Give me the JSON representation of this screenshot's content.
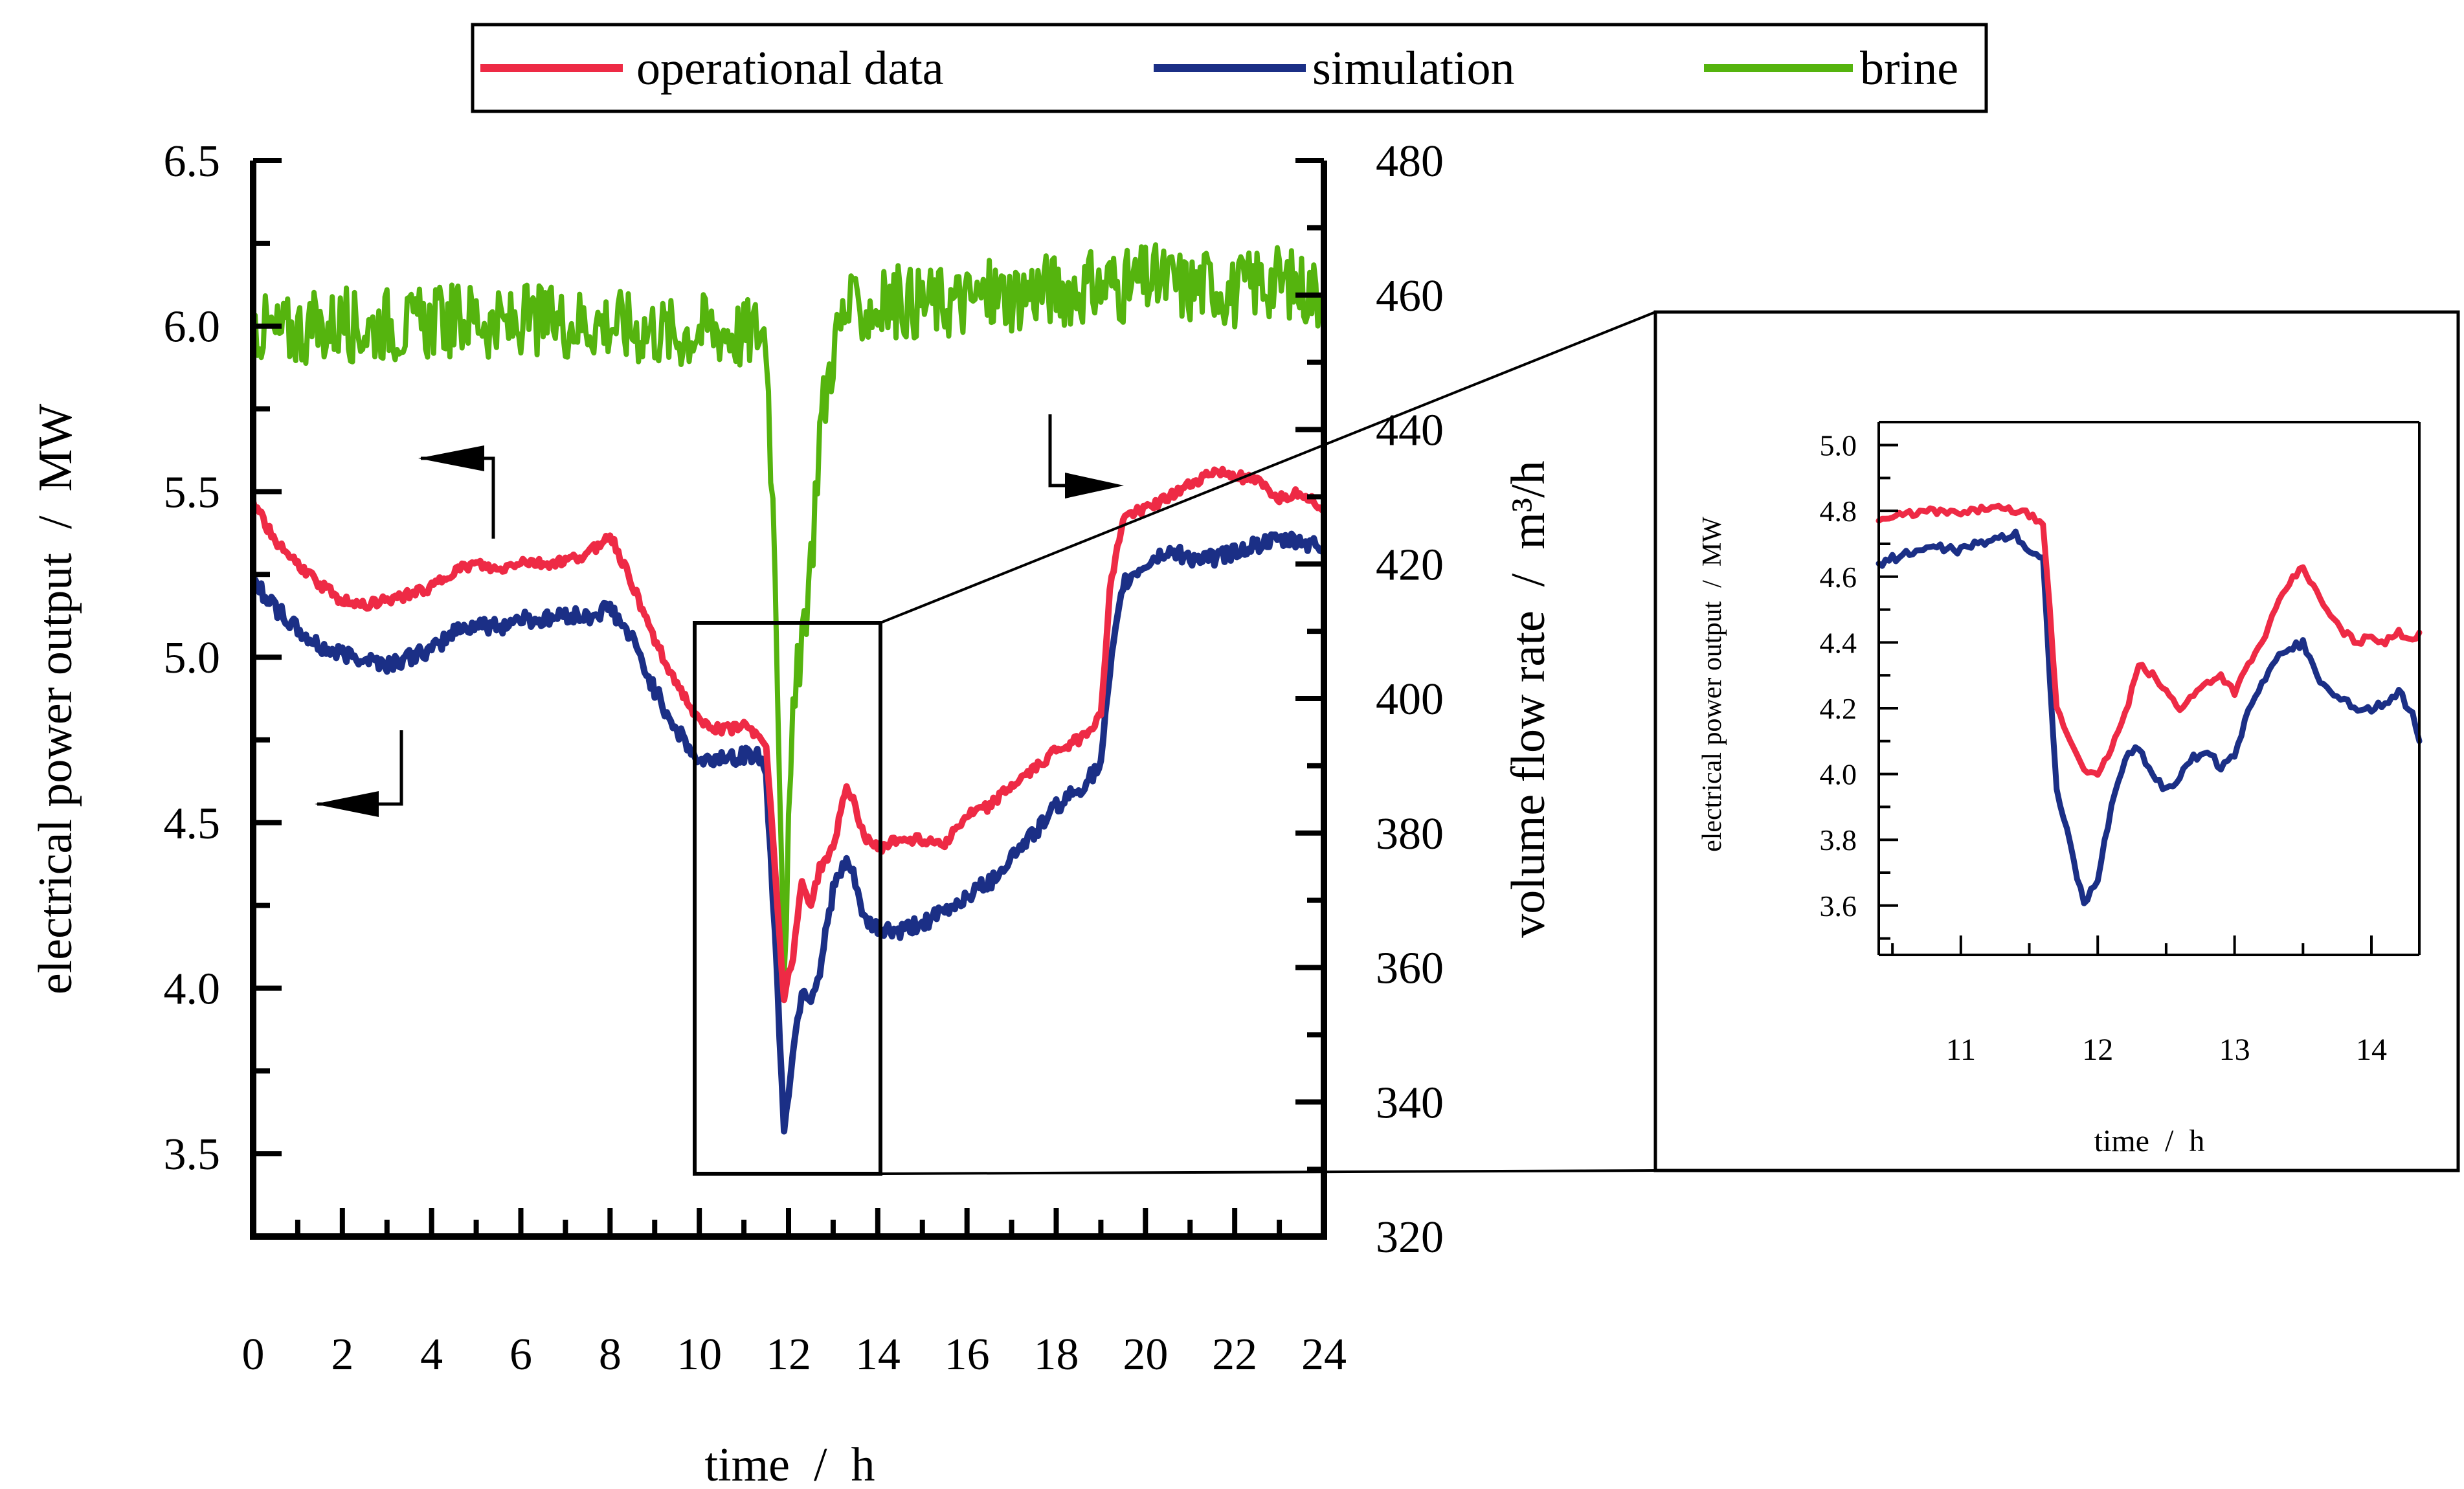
{
  "colors": {
    "operational": "#ee2a45",
    "simulation": "#1b2f86",
    "brine": "#55b40e"
  },
  "chart_data": [
    {
      "type": "line",
      "title": "",
      "xlabel": "time  /  h",
      "ylabel": "electrical power output  /  MW",
      "y2label": "volume flow rate  /  m³/h",
      "xlim": [
        0,
        24
      ],
      "ylim": [
        3.25,
        6.5
      ],
      "y2lim": [
        320,
        480
      ],
      "xticks": [
        "0",
        "2",
        "4",
        "6",
        "8",
        "10",
        "12",
        "14",
        "16",
        "18",
        "20",
        "22",
        "24"
      ],
      "yticks": [
        "3.5",
        "4.0",
        "4.5",
        "5.0",
        "5.5",
        "6.0",
        "6.5"
      ],
      "y2ticks": [
        "320",
        "340",
        "360",
        "380",
        "400",
        "420",
        "440",
        "460",
        "480"
      ],
      "legend": [
        "operational data",
        "simulation",
        "brine"
      ],
      "x": [
        0,
        0.5,
        1,
        1.5,
        2,
        2.5,
        3,
        3.5,
        4,
        4.5,
        5,
        5.5,
        6,
        6.5,
        7,
        7.5,
        8,
        8.5,
        9,
        9.5,
        10,
        10.5,
        11,
        11.3,
        11.5,
        11.7,
        11.9,
        12.1,
        12.3,
        12.5,
        12.7,
        13,
        13.3,
        13.5,
        13.7,
        14,
        14.5,
        15,
        15.5,
        16,
        16.5,
        17,
        17.5,
        18,
        18.5,
        19,
        19.2,
        19.5,
        20,
        20.5,
        21,
        21.5,
        22,
        22.5,
        23,
        23.5,
        24
      ],
      "series": [
        {
          "name": "operational data",
          "values": [
            5.47,
            5.35,
            5.28,
            5.22,
            5.17,
            5.16,
            5.17,
            5.19,
            5.21,
            5.26,
            5.28,
            5.26,
            5.29,
            5.28,
            5.29,
            5.31,
            5.37,
            5.22,
            5.05,
            4.92,
            4.8,
            4.78,
            4.79,
            4.77,
            4.74,
            4.35,
            3.97,
            4.1,
            4.32,
            4.25,
            4.36,
            4.42,
            4.62,
            4.55,
            4.46,
            4.42,
            4.45,
            4.45,
            4.44,
            4.52,
            4.55,
            4.61,
            4.66,
            4.72,
            4.75,
            4.82,
            5.2,
            5.42,
            5.45,
            5.48,
            5.52,
            5.56,
            5.55,
            5.53,
            5.48,
            5.5,
            5.45
          ]
        },
        {
          "name": "simulation",
          "values": [
            5.23,
            5.15,
            5.08,
            5.03,
            5.01,
            5.0,
            4.98,
            5.0,
            5.02,
            5.08,
            5.1,
            5.09,
            5.12,
            5.11,
            5.13,
            5.12,
            5.15,
            5.05,
            4.9,
            4.78,
            4.68,
            4.7,
            4.7,
            4.71,
            4.65,
            4.15,
            3.58,
            3.8,
            4.0,
            3.97,
            4.05,
            4.3,
            4.38,
            4.32,
            4.2,
            4.18,
            4.17,
            4.2,
            4.23,
            4.28,
            4.32,
            4.4,
            4.47,
            4.55,
            4.6,
            4.67,
            4.95,
            5.22,
            5.28,
            5.32,
            5.3,
            5.3,
            5.32,
            5.34,
            5.35,
            5.35,
            5.33
          ]
        },
        {
          "name": "brine",
          "axis": "right",
          "values": [
            456,
            454,
            455,
            455,
            456,
            455,
            456,
            455,
            456,
            456,
            457,
            455,
            456,
            456,
            456,
            456,
            456,
            455,
            455,
            454,
            455,
            455,
            454,
            455,
            454,
            420,
            362,
            395,
            410,
            420,
            440,
            452,
            458,
            457,
            458,
            458,
            459,
            459,
            459,
            459,
            460,
            460,
            461,
            461,
            461,
            461,
            462,
            461,
            462,
            462,
            461,
            462,
            460,
            462,
            462,
            461,
            460
          ]
        }
      ]
    },
    {
      "type": "line",
      "title": "",
      "xlabel": "time  /  h",
      "ylabel": "electrical power output  /  MW",
      "xlim": [
        10.4,
        14.35
      ],
      "ylim": [
        3.45,
        5.07
      ],
      "xticks": [
        "11",
        "12",
        "13",
        "14"
      ],
      "yticks": [
        "3.6",
        "3.8",
        "4.0",
        "4.2",
        "4.4",
        "4.6",
        "4.8",
        "5.0"
      ],
      "x": [
        10.4,
        10.6,
        10.8,
        11,
        11.2,
        11.4,
        11.5,
        11.6,
        11.65,
        11.7,
        11.8,
        11.9,
        12,
        12.1,
        12.2,
        12.3,
        12.4,
        12.5,
        12.6,
        12.7,
        12.8,
        12.9,
        13,
        13.1,
        13.2,
        13.3,
        13.4,
        13.5,
        13.6,
        13.7,
        13.8,
        13.9,
        14,
        14.1,
        14.2,
        14.3,
        14.35
      ],
      "series": [
        {
          "name": "operational data",
          "values": [
            4.77,
            4.79,
            4.8,
            4.79,
            4.81,
            4.8,
            4.79,
            4.75,
            4.5,
            4.2,
            4.1,
            4.02,
            3.99,
            4.08,
            4.18,
            4.33,
            4.3,
            4.25,
            4.2,
            4.24,
            4.28,
            4.3,
            4.25,
            4.33,
            4.4,
            4.5,
            4.58,
            4.63,
            4.55,
            4.48,
            4.43,
            4.4,
            4.42,
            4.4,
            4.43,
            4.41,
            4.43
          ]
        },
        {
          "name": "simulation",
          "values": [
            4.64,
            4.67,
            4.69,
            4.68,
            4.71,
            4.73,
            4.68,
            4.65,
            4.3,
            3.95,
            3.78,
            3.6,
            3.68,
            3.9,
            4.05,
            4.08,
            4.0,
            3.95,
            3.99,
            4.05,
            4.07,
            4.02,
            4.05,
            4.2,
            4.28,
            4.35,
            4.38,
            4.4,
            4.3,
            4.25,
            4.22,
            4.2,
            4.2,
            4.22,
            4.25,
            4.18,
            4.1
          ]
        }
      ]
    }
  ]
}
